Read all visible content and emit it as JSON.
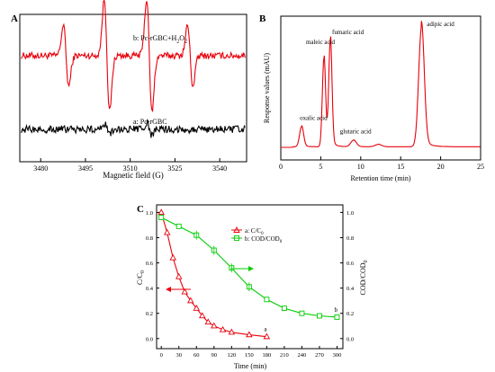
{
  "chart_data": [
    {
      "panel": "A",
      "type": "line",
      "xlabel": "Magnetic field (G)",
      "ylabel": "",
      "xlim": [
        3473,
        3549
      ],
      "xticks": [
        3480,
        3495,
        3510,
        3525,
        3540
      ],
      "yticks": [],
      "series": [
        {
          "name": "b: Pc-rGBC+H₂O₂",
          "label_text": "b: Pc-rGBC+H",
          "label_sub": "2",
          "label_tail": "O",
          "label_sub2": "2",
          "color": "#e8000b",
          "baseline": 0.72,
          "noise": 0.022,
          "peaks": [
            {
              "center": 3488.5,
              "amplitude": 0.38,
              "width": 0.9
            },
            {
              "center": 3502.2,
              "amplitude": 0.7,
              "width": 0.9
            },
            {
              "center": 3516.4,
              "amplitude": 0.7,
              "width": 0.9
            },
            {
              "center": 3530.1,
              "amplitude": 0.38,
              "width": 0.9
            }
          ]
        },
        {
          "name": "a: Pc-rGBC",
          "label_text": "a: Pc-rGBC",
          "color": "#000000",
          "baseline": 0.22,
          "noise": 0.025,
          "peaks": [
            {
              "center": 3502.3,
              "amplitude": 0.08,
              "width": 0.8
            },
            {
              "center": 3516.4,
              "amplitude": 0.08,
              "width": 0.8
            }
          ]
        }
      ]
    },
    {
      "panel": "B",
      "type": "line",
      "xlabel": "Retention time (min)",
      "ylabel": "Response values (mAU)",
      "xlim": [
        0,
        25
      ],
      "xticks": [
        0,
        5,
        10,
        15,
        20,
        25
      ],
      "yticks": [],
      "color": "#e8000b",
      "peaks": [
        {
          "name": "oxalic acid",
          "time": 2.6,
          "height": 0.17,
          "width": 0.25
        },
        {
          "name": "maleic acid",
          "time": 5.4,
          "height": 0.75,
          "width": 0.2
        },
        {
          "name": "fumaric acid",
          "time": 6.2,
          "height": 0.9,
          "width": 0.2
        },
        {
          "name": "glutaric acid",
          "time": 9.1,
          "height": 0.055,
          "width": 0.35
        },
        {
          "name": "",
          "time": 12.2,
          "height": 0.02,
          "width": 0.4
        },
        {
          "name": "adipic acid",
          "time": 17.6,
          "height": 1.0,
          "width": 0.35
        }
      ]
    },
    {
      "panel": "C",
      "type": "line",
      "xlabel": "Time (min)",
      "ylabel_left": "C/C0",
      "ylabel_right": "COD/COD0",
      "xlim": [
        -8,
        310
      ],
      "ylim": [
        -0.08,
        1.06
      ],
      "xticks": [
        0,
        30,
        60,
        90,
        120,
        150,
        180,
        210,
        240,
        270,
        300
      ],
      "yticks": [
        0.0,
        0.2,
        0.4,
        0.6,
        0.8,
        1.0
      ],
      "ytick_labels": [
        "0.0",
        "0.2",
        "0.4",
        "0.6",
        "0.8",
        "1.0"
      ],
      "legend_position": "top-center",
      "series": [
        {
          "name": "a: C/C0",
          "legend_main": "a: C/C",
          "legend_sub": "0",
          "end_label": "a",
          "color": "#e8000b",
          "marker": "triangle",
          "axis": "left",
          "x": [
            0,
            10,
            20,
            30,
            40,
            50,
            60,
            70,
            80,
            90,
            105,
            120,
            150,
            180
          ],
          "y": [
            1.0,
            0.84,
            0.64,
            0.49,
            0.37,
            0.3,
            0.24,
            0.18,
            0.13,
            0.1,
            0.07,
            0.05,
            0.03,
            0.015
          ]
        },
        {
          "name": "b: COD/COD0",
          "legend_main": "b: COD/COD",
          "legend_sub": "0",
          "end_label": "b",
          "color": "#00cc00",
          "marker": "square",
          "axis": "right",
          "x": [
            0,
            30,
            60,
            90,
            120,
            150,
            180,
            210,
            240,
            270,
            300
          ],
          "y": [
            0.96,
            0.89,
            0.82,
            0.7,
            0.56,
            0.41,
            0.31,
            0.24,
            0.2,
            0.18,
            0.17
          ]
        }
      ]
    }
  ]
}
